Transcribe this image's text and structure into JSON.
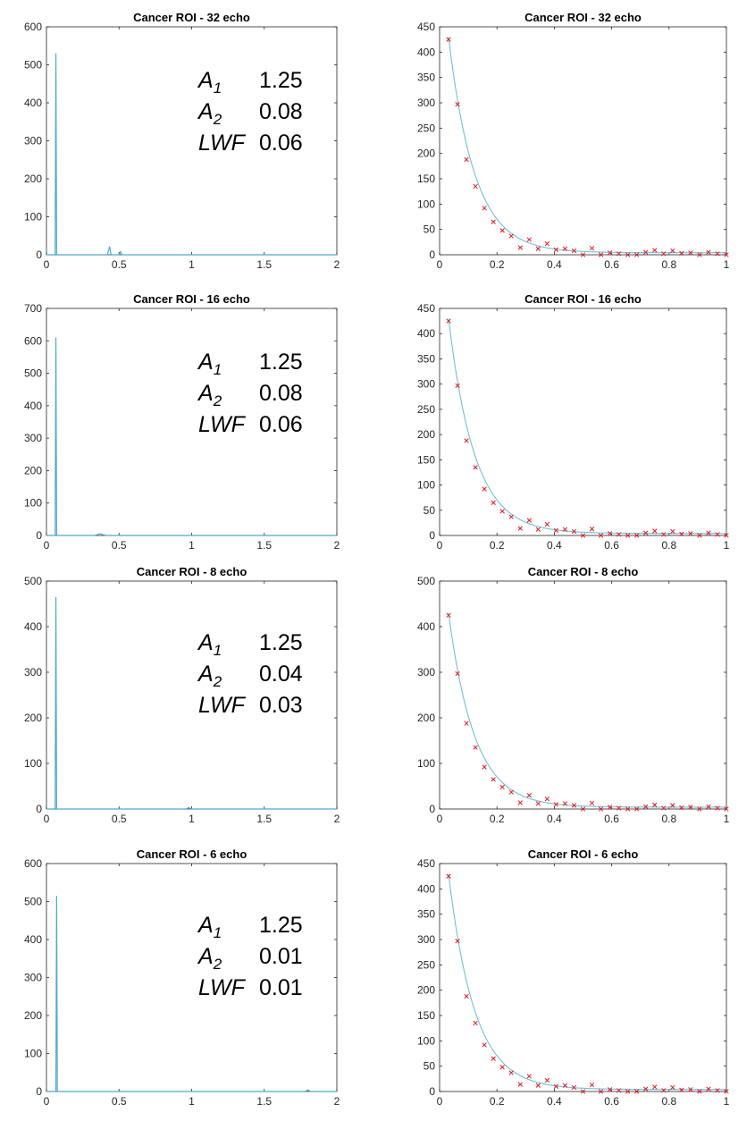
{
  "colors": {
    "line": "#4fa8cf",
    "fit": "#6fbfdc",
    "marker": "#e8141b",
    "axis": "#262626"
  },
  "annotation_labels": {
    "a1": "A",
    "a1_sub": "1",
    "a2": "A",
    "a2_sub": "2",
    "lwf": "LWF"
  },
  "chart_data": [
    {
      "id": "spec32",
      "type": "line",
      "title": "Cancer ROI - 32 echo",
      "xlim": [
        0,
        2
      ],
      "ylim": [
        0,
        600
      ],
      "xticks": [
        0,
        0.5,
        1,
        1.5,
        2
      ],
      "xtick_labels": [
        "0",
        "0.5",
        "1",
        "1.5",
        "2"
      ],
      "yticks": [
        0,
        100,
        200,
        300,
        400,
        500,
        600
      ],
      "ytick_labels": [
        "0",
        "100",
        "200",
        "300",
        "400",
        "500",
        "600"
      ],
      "x": [
        0,
        0.06,
        0.065,
        0.07,
        0.075,
        0.42,
        0.435,
        0.445,
        0.46,
        0.5,
        0.51,
        0.52,
        2
      ],
      "y": [
        0,
        0,
        530,
        0,
        0,
        0,
        22,
        0,
        0,
        0,
        8,
        0,
        0
      ],
      "annotation": {
        "a1": "1.25",
        "a2": "0.08",
        "lwf": "0.06"
      }
    },
    {
      "id": "decay32",
      "type": "scatter",
      "title": "Cancer ROI - 32 echo",
      "xlim": [
        0,
        1
      ],
      "ylim": [
        0,
        450
      ],
      "xticks": [
        0,
        0.2,
        0.4,
        0.6,
        0.8,
        1
      ],
      "xtick_labels": [
        "0",
        "0.2",
        "0.4",
        "0.6",
        "0.8",
        "1"
      ],
      "yticks": [
        0,
        50,
        100,
        150,
        200,
        250,
        300,
        350,
        400,
        450
      ],
      "ytick_labels": [
        "0",
        "50",
        "100",
        "150",
        "200",
        "250",
        "300",
        "350",
        "400",
        "450"
      ],
      "x": [
        0.03125,
        0.0625,
        0.09375,
        0.125,
        0.15625,
        0.1875,
        0.21875,
        0.25,
        0.28125,
        0.3125,
        0.34375,
        0.375,
        0.40625,
        0.4375,
        0.46875,
        0.5,
        0.53125,
        0.5625,
        0.59375,
        0.625,
        0.65625,
        0.6875,
        0.71875,
        0.75,
        0.78125,
        0.8125,
        0.84375,
        0.875,
        0.90625,
        0.9375,
        0.96875,
        1.0
      ],
      "y": [
        425,
        297,
        188,
        135,
        92,
        65,
        48,
        37,
        14,
        30,
        12,
        22,
        10,
        12,
        8,
        0,
        13,
        0,
        4,
        2,
        0,
        0,
        5,
        9,
        2,
        8,
        3,
        4,
        0,
        5,
        2,
        0
      ],
      "fit": {
        "amplitude": 600,
        "rate": 11.0,
        "offset": 4
      }
    },
    {
      "id": "spec16",
      "type": "line",
      "title": "Cancer ROI - 16 echo",
      "xlim": [
        0,
        2
      ],
      "ylim": [
        0,
        700
      ],
      "xticks": [
        0,
        0.5,
        1,
        1.5,
        2
      ],
      "xtick_labels": [
        "0",
        "0.5",
        "1",
        "1.5",
        "2"
      ],
      "yticks": [
        0,
        100,
        200,
        300,
        400,
        500,
        600,
        700
      ],
      "ytick_labels": [
        "0",
        "100",
        "200",
        "300",
        "400",
        "500",
        "600",
        "700"
      ],
      "x": [
        0,
        0.06,
        0.065,
        0.07,
        0.075,
        0.33,
        0.37,
        0.41,
        2
      ],
      "y": [
        0,
        0,
        610,
        0,
        0,
        0,
        5,
        0,
        0
      ],
      "annotation": {
        "a1": "1.25",
        "a2": "0.08",
        "lwf": "0.06"
      }
    },
    {
      "id": "decay16",
      "type": "scatter",
      "title": "Cancer ROI - 16 echo",
      "xlim": [
        0,
        1
      ],
      "ylim": [
        0,
        450
      ],
      "xticks": [
        0,
        0.2,
        0.4,
        0.6,
        0.8,
        1
      ],
      "xtick_labels": [
        "0",
        "0.2",
        "0.4",
        "0.6",
        "0.8",
        "1"
      ],
      "yticks": [
        0,
        50,
        100,
        150,
        200,
        250,
        300,
        350,
        400,
        450
      ],
      "ytick_labels": [
        "0",
        "50",
        "100",
        "150",
        "200",
        "250",
        "300",
        "350",
        "400",
        "450"
      ],
      "x": [
        0.03125,
        0.0625,
        0.09375,
        0.125,
        0.15625,
        0.1875,
        0.21875,
        0.25,
        0.28125,
        0.3125,
        0.34375,
        0.375,
        0.40625,
        0.4375,
        0.46875,
        0.5,
        0.53125,
        0.5625,
        0.59375,
        0.625,
        0.65625,
        0.6875,
        0.71875,
        0.75,
        0.78125,
        0.8125,
        0.84375,
        0.875,
        0.90625,
        0.9375,
        0.96875,
        1.0
      ],
      "y": [
        425,
        297,
        188,
        135,
        92,
        65,
        48,
        37,
        14,
        30,
        12,
        22,
        10,
        12,
        8,
        0,
        13,
        0,
        4,
        2,
        0,
        0,
        5,
        9,
        2,
        8,
        3,
        4,
        0,
        5,
        2,
        0
      ],
      "fit": {
        "amplitude": 600,
        "rate": 11.0,
        "offset": 4
      }
    },
    {
      "id": "spec8",
      "type": "line",
      "title": "Cancer ROI - 8 echo",
      "xlim": [
        0,
        2
      ],
      "ylim": [
        0,
        500
      ],
      "xticks": [
        0,
        0.5,
        1,
        1.5,
        2
      ],
      "xtick_labels": [
        "0",
        "0.5",
        "1",
        "1.5",
        "2"
      ],
      "yticks": [
        0,
        100,
        200,
        300,
        400,
        500
      ],
      "ytick_labels": [
        "0",
        "100",
        "200",
        "300",
        "400",
        "500"
      ],
      "x": [
        0,
        0.06,
        0.065,
        0.07,
        0.075,
        0.96,
        0.98,
        1.0,
        2
      ],
      "y": [
        0,
        0,
        465,
        0,
        0,
        0,
        3,
        0,
        0
      ],
      "annotation": {
        "a1": "1.25",
        "a2": "0.04",
        "lwf": "0.03"
      }
    },
    {
      "id": "decay8",
      "type": "scatter",
      "title": "Cancer ROI - 8 echo",
      "xlim": [
        0,
        1
      ],
      "ylim": [
        0,
        500
      ],
      "xticks": [
        0,
        0.2,
        0.4,
        0.6,
        0.8,
        1
      ],
      "xtick_labels": [
        "0",
        "0.2",
        "0.4",
        "0.6",
        "0.8",
        "1"
      ],
      "yticks": [
        0,
        100,
        200,
        300,
        400,
        500
      ],
      "ytick_labels": [
        "0",
        "100",
        "200",
        "300",
        "400",
        "500"
      ],
      "x": [
        0.03125,
        0.0625,
        0.09375,
        0.125,
        0.15625,
        0.1875,
        0.21875,
        0.25,
        0.28125,
        0.3125,
        0.34375,
        0.375,
        0.40625,
        0.4375,
        0.46875,
        0.5,
        0.53125,
        0.5625,
        0.59375,
        0.625,
        0.65625,
        0.6875,
        0.71875,
        0.75,
        0.78125,
        0.8125,
        0.84375,
        0.875,
        0.90625,
        0.9375,
        0.96875,
        1.0
      ],
      "y": [
        425,
        297,
        188,
        135,
        92,
        65,
        48,
        37,
        14,
        30,
        12,
        22,
        10,
        12,
        8,
        0,
        13,
        0,
        4,
        2,
        0,
        0,
        5,
        9,
        2,
        8,
        3,
        4,
        0,
        5,
        2,
        0
      ],
      "fit": {
        "amplitude": 600,
        "rate": 11.0,
        "offset": 4
      }
    },
    {
      "id": "spec6",
      "type": "line",
      "title": "Cancer ROI - 6 echo",
      "xlim": [
        0,
        2
      ],
      "ylim": [
        0,
        600
      ],
      "xticks": [
        0,
        0.5,
        1,
        1.5,
        2
      ],
      "xtick_labels": [
        "0",
        "0.5",
        "1",
        "1.5",
        "2"
      ],
      "yticks": [
        0,
        100,
        200,
        300,
        400,
        500,
        600
      ],
      "ytick_labels": [
        "0",
        "100",
        "200",
        "300",
        "400",
        "500",
        "600"
      ],
      "x": [
        0,
        0.065,
        0.07,
        0.075,
        0.08,
        1.78,
        1.8,
        1.82,
        2
      ],
      "y": [
        0,
        0,
        515,
        0,
        0,
        0,
        4,
        0,
        0
      ],
      "annotation": {
        "a1": "1.25",
        "a2": "0.01",
        "lwf": "0.01"
      }
    },
    {
      "id": "decay6",
      "type": "scatter",
      "title": "Cancer ROI - 6 echo",
      "xlim": [
        0,
        1
      ],
      "ylim": [
        0,
        450
      ],
      "xticks": [
        0,
        0.2,
        0.4,
        0.6,
        0.8,
        1
      ],
      "xtick_labels": [
        "0",
        "0.2",
        "0.4",
        "0.6",
        "0.8",
        "1"
      ],
      "yticks": [
        0,
        50,
        100,
        150,
        200,
        250,
        300,
        350,
        400,
        450
      ],
      "ytick_labels": [
        "0",
        "50",
        "100",
        "150",
        "200",
        "250",
        "300",
        "350",
        "400",
        "450"
      ],
      "x": [
        0.03125,
        0.0625,
        0.09375,
        0.125,
        0.15625,
        0.1875,
        0.21875,
        0.25,
        0.28125,
        0.3125,
        0.34375,
        0.375,
        0.40625,
        0.4375,
        0.46875,
        0.5,
        0.53125,
        0.5625,
        0.59375,
        0.625,
        0.65625,
        0.6875,
        0.71875,
        0.75,
        0.78125,
        0.8125,
        0.84375,
        0.875,
        0.90625,
        0.9375,
        0.96875,
        1.0
      ],
      "y": [
        425,
        297,
        188,
        135,
        92,
        65,
        48,
        37,
        14,
        30,
        12,
        22,
        10,
        12,
        8,
        0,
        13,
        0,
        4,
        2,
        0,
        0,
        5,
        9,
        2,
        8,
        3,
        4,
        0,
        5,
        2,
        0
      ],
      "fit": {
        "amplitude": 600,
        "rate": 11.0,
        "offset": 4
      }
    }
  ]
}
